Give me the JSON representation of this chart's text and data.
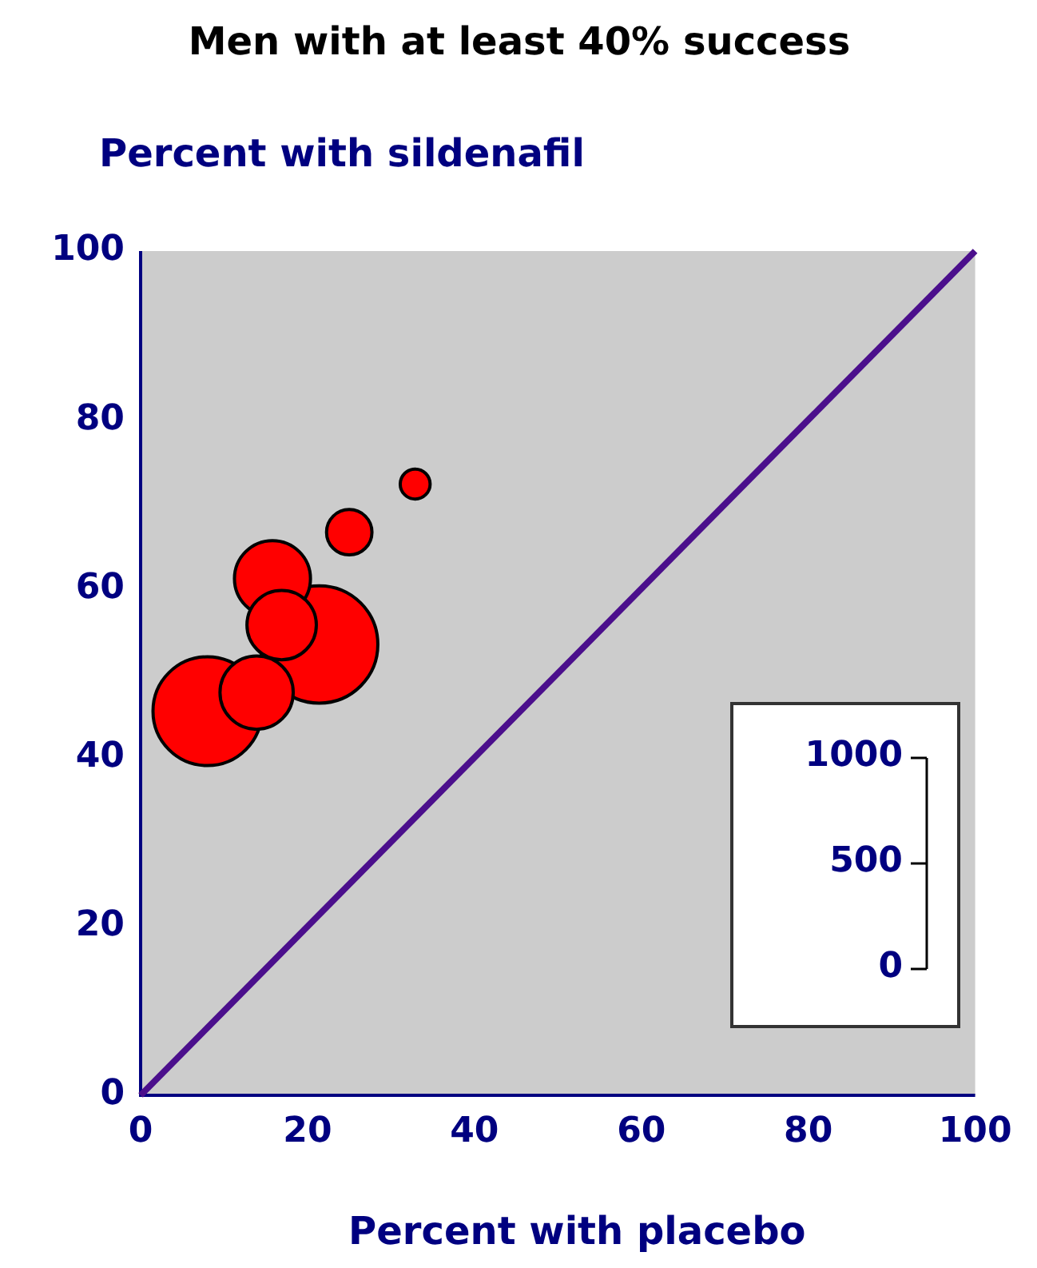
{
  "chart_data": {
    "type": "bubble",
    "title": "Men with at least 40% success",
    "ylabel": "Percent with sildenafil",
    "xlabel": "Percent with placebo",
    "x": [
      8.0,
      21.4,
      15.8,
      16.9,
      13.9,
      25.0,
      32.9
    ],
    "series": [
      {
        "color": "#ff0000",
        "values": [
          45.5,
          53.4,
          61.2,
          55.7,
          47.7,
          66.7,
          72.4
        ],
        "sizes": [
          0.86,
          1,
          0.42,
          0.35,
          0.39,
          0.15,
          0.065
        ]
      },
      {
        "type": "line",
        "color": "#4b0f8c",
        "x": [
          0,
          100
        ],
        "values": [
          0,
          100
        ],
        "marker": "none"
      }
    ],
    "annotations": [
      "1000",
      "500",
      "0"
    ],
    "xlim": [
      0,
      100
    ],
    "ylim": [
      0,
      100
    ],
    "xticks": [
      0,
      20,
      40,
      60,
      80,
      100
    ],
    "yticks": [
      0,
      20,
      40,
      60,
      80,
      100
    ],
    "grid": false,
    "legend": false
  }
}
